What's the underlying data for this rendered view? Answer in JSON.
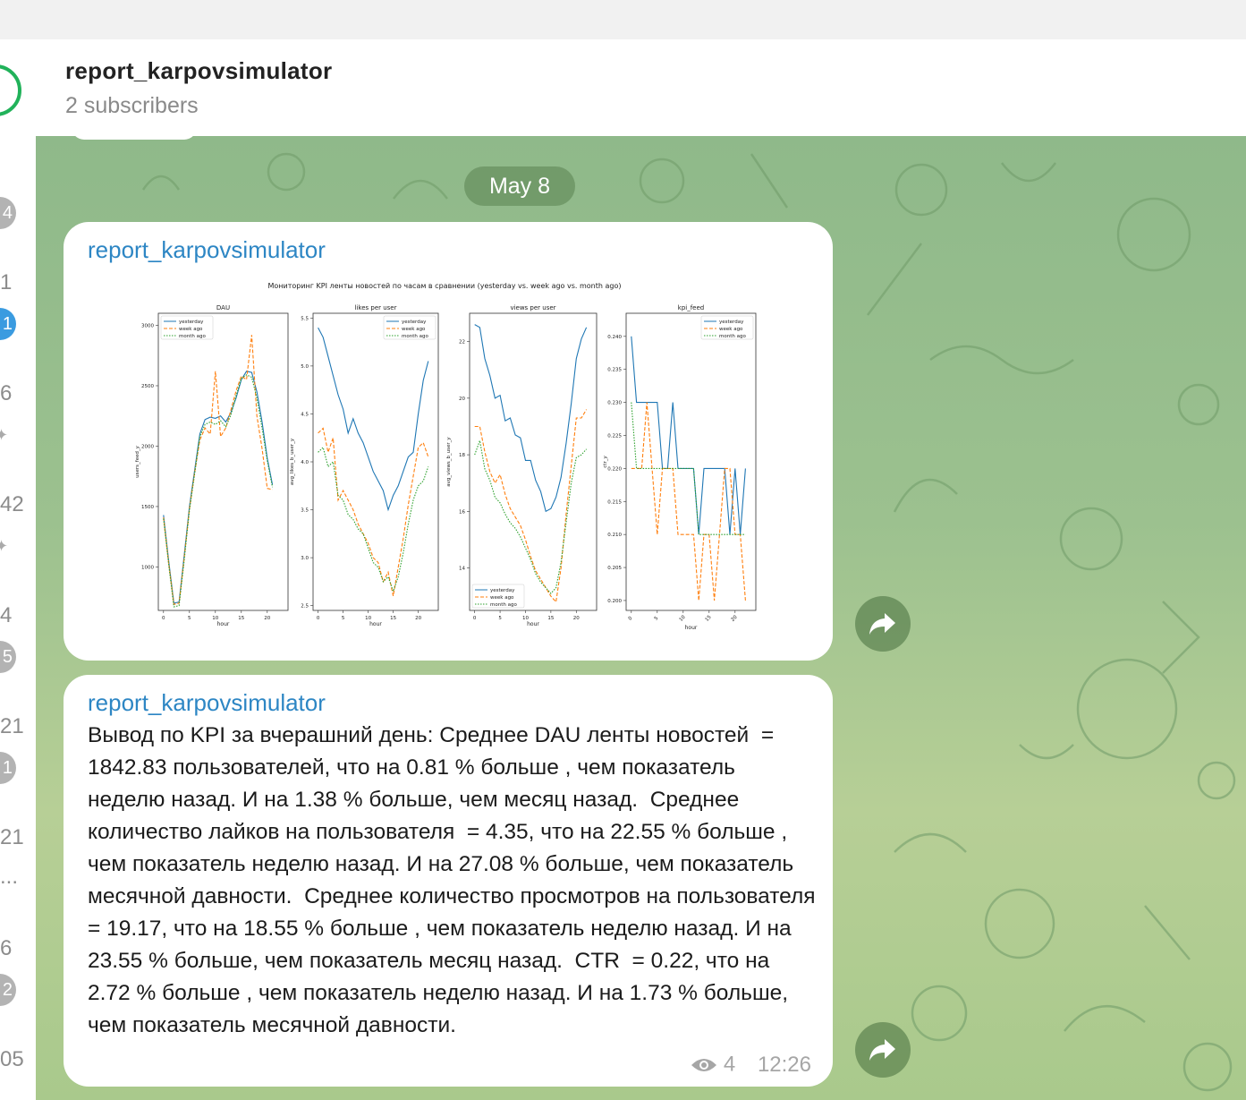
{
  "header": {
    "title": "report_karpovsimulator",
    "subscribers": "2 subscribers"
  },
  "sidebar": {
    "counts": [
      "4",
      "1",
      "6",
      "42",
      "4",
      "5",
      "21",
      "1",
      "21",
      "...",
      "6",
      "2",
      "05"
    ]
  },
  "date_separator": "May 8",
  "messages": [
    {
      "sender": "report_karpovsimulator"
    },
    {
      "sender": "report_karpovsimulator",
      "text": "Вывод по KPI за вчерашний день: Среднее DAU ленты новостей  = 1842.83 пользователей, что на 0.81 % больше , чем показатель неделю назад. И на 1.38 % больше, чем месяц назад.  Среднее количество лайков на пользователя  = 4.35, что на 22.55 % больше , чем показатель неделю назад. И на 27.08 % больше, чем показатель месячной давности.  Среднее количество просмотров на пользователя  = 19.17, что на 18.55 % больше , чем показатель неделю назад. И на 23.55 % больше, чем показатель месяц назад.  CTR  = 0.22, что на 2.72 % больше , чем показатель неделю назад. И на 1.73 % больше, чем показатель месячной давности.",
      "views": "4",
      "time": "12:26"
    }
  ],
  "colors": {
    "yesterday": "#1f77b4",
    "week_ago": "#ff7f0e",
    "month_ago": "#2ca02c",
    "link": "#2d86c4"
  },
  "chart_data": {
    "type": "line",
    "title": "Мониторинг KPI ленты новостей по часам в сравнении (yesterday vs. week ago vs. month ago)",
    "legend": [
      "yesterday",
      "week ago",
      "month ago"
    ],
    "panels": [
      {
        "title": "DAU",
        "xlabel": "hour",
        "ylabel": "users_feed_y",
        "ylim": [
          640,
          3100
        ],
        "yticks": [
          1000,
          1500,
          2000,
          2500,
          3000
        ],
        "xticks": [
          0,
          5,
          10,
          15,
          20
        ],
        "xlim": [
          -1,
          24
        ],
        "legend_position": "upper left",
        "series": [
          {
            "name": "yesterday",
            "values": [
              1430,
              1050,
              700,
              710,
              1100,
              1500,
              1800,
              2100,
              2220,
              2240,
              2230,
              2250,
              2200,
              2280,
              2400,
              2550,
              2620,
              2610,
              2450,
              2200,
              1900,
              1680
            ]
          },
          {
            "name": "week ago",
            "values": [
              1410,
              1030,
              690,
              700,
              1080,
              1480,
              1780,
              2050,
              2150,
              2100,
              2620,
              2080,
              2150,
              2300,
              2460,
              2580,
              2550,
              2920,
              2250,
              1980,
              1650,
              1640
            ]
          },
          {
            "name": "month ago",
            "values": [
              1400,
              1020,
              670,
              680,
              1060,
              1470,
              1770,
              2080,
              2180,
              2200,
              2180,
              2210,
              2160,
              2260,
              2420,
              2560,
              2590,
              2570,
              2400,
              2150,
              1880,
              1660
            ]
          }
        ]
      },
      {
        "title": "likes per user",
        "xlabel": "hour",
        "ylabel": "avg_likes_b_user_y",
        "ylim": [
          2.45,
          5.55
        ],
        "yticks": [
          2.5,
          3.0,
          3.5,
          4.0,
          4.5,
          5.0,
          5.5
        ],
        "xticks": [
          0,
          5,
          10,
          15,
          20
        ],
        "xlim": [
          -1,
          24
        ],
        "legend_position": "upper right",
        "series": [
          {
            "name": "yesterday",
            "values": [
              5.4,
              5.3,
              5.1,
              4.9,
              4.7,
              4.55,
              4.3,
              4.45,
              4.3,
              4.2,
              4.05,
              3.9,
              3.8,
              3.7,
              3.5,
              3.65,
              3.75,
              3.9,
              4.05,
              4.1,
              4.5,
              4.85,
              5.05
            ]
          },
          {
            "name": "week ago",
            "values": [
              4.3,
              4.35,
              4.1,
              4.25,
              3.6,
              3.7,
              3.6,
              3.5,
              3.35,
              3.25,
              3.15,
              3.0,
              2.95,
              2.75,
              2.85,
              2.6,
              2.9,
              3.2,
              3.55,
              3.85,
              4.15,
              4.2,
              4.05
            ]
          },
          {
            "name": "month ago",
            "values": [
              4.1,
              4.15,
              3.95,
              4.0,
              3.65,
              3.6,
              3.45,
              3.4,
              3.3,
              3.25,
              3.1,
              2.95,
              2.9,
              2.75,
              2.8,
              2.65,
              2.8,
              3.05,
              3.35,
              3.6,
              3.75,
              3.8,
              3.95
            ]
          }
        ]
      },
      {
        "title": "views per user",
        "xlabel": "hour",
        "ylabel": "avg_views_b_user_y",
        "ylim": [
          12.5,
          23.0
        ],
        "yticks": [
          14,
          16,
          18,
          20,
          22
        ],
        "xticks": [
          0,
          5,
          10,
          15,
          20
        ],
        "xlim": [
          -1,
          24
        ],
        "legend_position": "lower left",
        "series": [
          {
            "name": "yesterday",
            "values": [
              22.6,
              22.5,
              21.4,
              20.8,
              20.0,
              20.1,
              19.2,
              19.3,
              18.7,
              18.6,
              17.8,
              17.8,
              17.1,
              16.7,
              16.0,
              16.1,
              16.5,
              17.2,
              18.4,
              19.8,
              21.4,
              22.1,
              22.5
            ]
          },
          {
            "name": "week ago",
            "values": [
              19.0,
              19.0,
              18.1,
              17.4,
              17.0,
              17.3,
              16.6,
              16.1,
              15.8,
              15.5,
              15.0,
              14.4,
              13.9,
              13.6,
              13.3,
              13.0,
              12.8,
              14.0,
              15.9,
              17.6,
              19.3,
              19.3,
              19.6
            ]
          },
          {
            "name": "month ago",
            "values": [
              18.0,
              18.5,
              17.5,
              17.1,
              16.5,
              16.3,
              15.9,
              15.6,
              15.4,
              15.1,
              14.7,
              14.3,
              13.8,
              13.5,
              13.3,
              13.1,
              13.3,
              14.2,
              15.6,
              17.0,
              17.9,
              18.0,
              18.2
            ]
          }
        ]
      },
      {
        "title": "kpi_feed",
        "xlabel": "hour",
        "ylabel": "ctr_y",
        "ylim": [
          0.1985,
          0.2435
        ],
        "yticks": [
          0.2,
          0.205,
          0.21,
          0.215,
          0.22,
          0.225,
          0.23,
          0.235,
          0.24
        ],
        "xticks": [
          0,
          5,
          10,
          15,
          20
        ],
        "xlim": [
          -1,
          24
        ],
        "legend_position": "upper right",
        "series": [
          {
            "name": "yesterday",
            "values": [
              0.24,
              0.23,
              0.23,
              0.23,
              0.23,
              0.23,
              0.22,
              0.22,
              0.23,
              0.22,
              0.22,
              0.22,
              0.22,
              0.21,
              0.22,
              0.22,
              0.22,
              0.22,
              0.22,
              0.21,
              0.22,
              0.21,
              0.22
            ]
          },
          {
            "name": "week ago",
            "values": [
              0.22,
              0.22,
              0.22,
              0.23,
              0.22,
              0.21,
              0.22,
              0.22,
              0.22,
              0.21,
              0.21,
              0.21,
              0.21,
              0.2,
              0.21,
              0.21,
              0.2,
              0.21,
              0.22,
              0.22,
              0.21,
              0.21,
              0.2
            ]
          },
          {
            "name": "month ago",
            "values": [
              0.23,
              0.22,
              0.22,
              0.22,
              0.22,
              0.22,
              0.22,
              0.22,
              0.22,
              0.22,
              0.22,
              0.22,
              0.22,
              0.21,
              0.21,
              0.21,
              0.21,
              0.21,
              0.21,
              0.21,
              0.21,
              0.21,
              0.21
            ]
          }
        ]
      }
    ]
  }
}
